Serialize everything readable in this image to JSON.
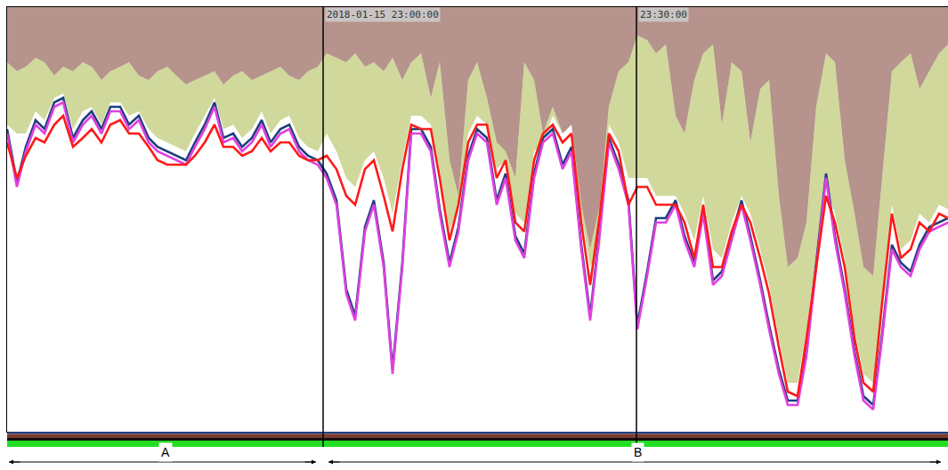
{
  "chart_data": {
    "type": "line",
    "tick_labels": false,
    "grid": false,
    "xlim": [
      8,
      1065
    ],
    "ylim": [
      485,
      8
    ],
    "x": [
      8,
      19,
      29,
      40,
      50,
      61,
      71,
      82,
      93,
      103,
      114,
      124,
      135,
      145,
      156,
      167,
      177,
      188,
      198,
      209,
      219,
      230,
      241,
      251,
      262,
      272,
      283,
      294,
      304,
      315,
      325,
      336,
      346,
      357,
      367,
      378,
      389,
      399,
      410,
      420,
      431,
      441,
      452,
      462,
      473,
      484,
      494,
      505,
      515,
      526,
      536,
      547,
      558,
      568,
      579,
      589,
      600,
      610,
      621,
      632,
      642,
      653,
      663,
      674,
      684,
      695,
      706,
      716,
      727,
      737,
      748,
      759,
      769,
      780,
      790,
      801,
      811,
      822,
      833,
      843,
      854,
      864,
      875,
      885,
      896,
      906,
      917,
      928,
      938,
      949,
      960,
      970,
      981,
      991,
      1002,
      1012,
      1023,
      1033,
      1044,
      1055,
      1065
    ],
    "series": [
      {
        "type": "area",
        "color": "#7a3b2e",
        "values": [
          70,
          80,
          75,
          65,
          70,
          85,
          75,
          80,
          70,
          75,
          90,
          80,
          75,
          70,
          85,
          90,
          80,
          75,
          85,
          95,
          90,
          85,
          80,
          95,
          85,
          80,
          90,
          85,
          80,
          75,
          85,
          90,
          80,
          75,
          60,
          65,
          70,
          60,
          75,
          70,
          80,
          65,
          90,
          70,
          60,
          110,
          70,
          180,
          220,
          90,
          70,
          110,
          160,
          170,
          200,
          70,
          90,
          150,
          120,
          150,
          140,
          230,
          280,
          230,
          120,
          80,
          70,
          40,
          45,
          60,
          50,
          130,
          150,
          90,
          60,
          50,
          140,
          70,
          80,
          160,
          100,
          90,
          220,
          300,
          290,
          250,
          120,
          60,
          70,
          180,
          240,
          300,
          310,
          200,
          80,
          70,
          60,
          100,
          80,
          60,
          50
        ]
      },
      {
        "type": "area",
        "color": "#a9b84a",
        "values": [
          140,
          150,
          150,
          125,
          135,
          110,
          105,
          145,
          125,
          120,
          140,
          115,
          115,
          130,
          125,
          145,
          155,
          160,
          165,
          170,
          150,
          130,
          110,
          145,
          140,
          155,
          145,
          125,
          150,
          135,
          130,
          155,
          165,
          170,
          150,
          170,
          200,
          210,
          180,
          170,
          200,
          240,
          180,
          130,
          130,
          140,
          190,
          260,
          230,
          150,
          130,
          140,
          190,
          180,
          240,
          250,
          170,
          160,
          130,
          150,
          140,
          240,
          300,
          280,
          140,
          160,
          200,
          200,
          200,
          220,
          220,
          220,
          240,
          270,
          220,
          280,
          290,
          250,
          220,
          240,
          280,
          320,
          380,
          430,
          430,
          370,
          290,
          210,
          240,
          290,
          370,
          420,
          430,
          330,
          230,
          280,
          270,
          240,
          250,
          230,
          235
        ]
      },
      {
        "type": "line",
        "color": "#1f3f7f",
        "line_style": "solid",
        "values": [
          145,
          205,
          165,
          135,
          145,
          115,
          110,
          155,
          135,
          125,
          145,
          120,
          120,
          140,
          130,
          155,
          165,
          170,
          175,
          180,
          160,
          140,
          115,
          155,
          150,
          165,
          155,
          135,
          160,
          145,
          140,
          165,
          175,
          180,
          195,
          225,
          325,
          355,
          255,
          225,
          295,
          415,
          295,
          145,
          145,
          165,
          235,
          295,
          255,
          175,
          145,
          155,
          225,
          195,
          265,
          285,
          195,
          155,
          145,
          185,
          165,
          275,
          355,
          255,
          155,
          185,
          225,
          365,
          305,
          245,
          245,
          225,
          265,
          295,
          235,
          315,
          305,
          265,
          225,
          265,
          315,
          365,
          415,
          450,
          450,
          395,
          295,
          195,
          265,
          325,
          395,
          445,
          455,
          375,
          275,
          295,
          305,
          275,
          255,
          250,
          245
        ]
      },
      {
        "type": "line",
        "color": "#e040e0",
        "line_style": "solid",
        "values": [
          150,
          210,
          170,
          140,
          150,
          120,
          115,
          160,
          140,
          130,
          150,
          125,
          125,
          145,
          135,
          160,
          170,
          175,
          180,
          185,
          165,
          145,
          120,
          160,
          155,
          170,
          160,
          140,
          165,
          150,
          145,
          170,
          180,
          185,
          200,
          230,
          330,
          360,
          260,
          230,
          300,
          420,
          300,
          150,
          150,
          170,
          240,
          300,
          260,
          180,
          150,
          160,
          230,
          200,
          270,
          290,
          200,
          160,
          150,
          190,
          170,
          280,
          360,
          260,
          160,
          190,
          230,
          370,
          310,
          250,
          250,
          230,
          270,
          300,
          240,
          320,
          310,
          270,
          230,
          270,
          320,
          370,
          420,
          455,
          455,
          400,
          300,
          200,
          270,
          330,
          400,
          450,
          460,
          380,
          280,
          300,
          310,
          280,
          260,
          255,
          250
        ]
      },
      {
        "type": "line",
        "color": "#ff1a1a",
        "line_style": "solid",
        "values": [
          160,
          200,
          175,
          155,
          160,
          140,
          130,
          165,
          155,
          145,
          160,
          140,
          135,
          150,
          150,
          165,
          180,
          185,
          185,
          185,
          175,
          160,
          140,
          165,
          165,
          175,
          170,
          155,
          170,
          160,
          160,
          175,
          180,
          180,
          175,
          190,
          220,
          230,
          190,
          180,
          220,
          260,
          190,
          140,
          145,
          145,
          200,
          270,
          230,
          160,
          140,
          140,
          200,
          180,
          250,
          260,
          180,
          150,
          140,
          160,
          150,
          250,
          320,
          240,
          150,
          170,
          230,
          210,
          210,
          230,
          230,
          230,
          250,
          290,
          230,
          300,
          300,
          260,
          230,
          250,
          290,
          330,
          390,
          440,
          445,
          380,
          300,
          220,
          250,
          300,
          380,
          430,
          440,
          340,
          240,
          290,
          280,
          250,
          260,
          240,
          245
        ]
      }
    ],
    "annotations": [
      {
        "x": 363,
        "text": "2018-01-15 23:00:00"
      },
      {
        "x": 715,
        "text": "23:30:00"
      }
    ],
    "segments": [
      {
        "label": "A",
        "start": 8,
        "end": 363
      },
      {
        "label": "B",
        "start": 367,
        "end": 1065
      }
    ]
  }
}
